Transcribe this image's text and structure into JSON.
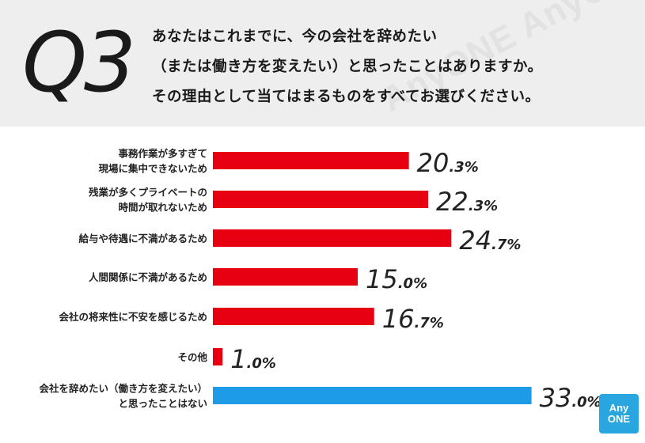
{
  "header": {
    "q_label": "Q3",
    "question_lines": [
      "あなたはこれまでに、今の会社を辞めたい",
      "（または働き方を変えたい）と思ったことはありますか。",
      "その理由として当てはまるものをすべてお選びください。"
    ],
    "watermark": "AnyONE AnyONE"
  },
  "chart_data": {
    "type": "bar",
    "orientation": "horizontal",
    "unit": "%",
    "xlim": [
      0,
      33
    ],
    "grid": false,
    "categories": [
      [
        "事務作業が多すぎて",
        "現場に集中できないため"
      ],
      [
        "残業が多くプライベートの",
        "時間が取れないため"
      ],
      [
        "給与や待遇に不満があるため"
      ],
      [
        "人間関係に不満があるため"
      ],
      [
        "会社の将来性に不安を感じるため"
      ],
      [
        "その他"
      ],
      [
        "会社を辞めたい（働き方を変えたい）",
        "と思ったことはない"
      ]
    ],
    "values": [
      20.3,
      22.3,
      24.7,
      15.0,
      16.7,
      1.0,
      33.0
    ],
    "value_labels": [
      "20.3%",
      "22.3%",
      "24.7%",
      "15.0%",
      "16.7%",
      "1.0%",
      "33.0%"
    ],
    "colors": [
      "#e60012",
      "#e60012",
      "#e60012",
      "#e60012",
      "#e60012",
      "#e60012",
      "#1e9be6"
    ]
  },
  "logo": {
    "line1": "Any",
    "line2": "ONE"
  }
}
